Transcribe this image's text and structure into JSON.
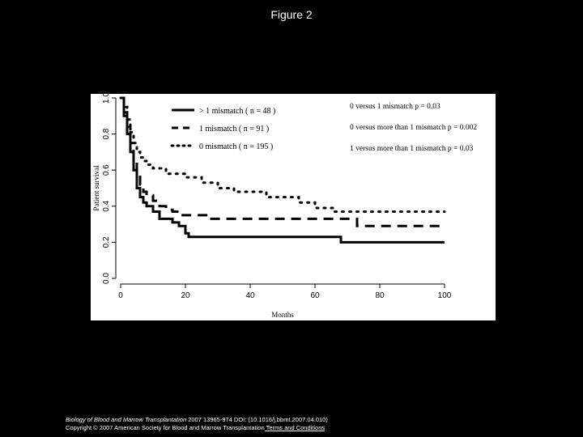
{
  "slide": {
    "title": "Figure 2"
  },
  "caption": {
    "journal": "Biology of Blood and Marrow Transplantation",
    "citation": " 2007 13965-974 DOI: (10.1016/j.bbmt.2007.04.010)",
    "copyright": "Copyright © 2007 American Society for Blood and Marrow Transplantation",
    "terms_link": " Terms and Conditions"
  },
  "chart_data": {
    "type": "line",
    "title": "",
    "xlabel": "Months",
    "ylabel": "Patient survival",
    "xlim": [
      0,
      100
    ],
    "ylim": [
      0,
      1.0
    ],
    "x_ticks": [
      0,
      20,
      40,
      60,
      80,
      100
    ],
    "y_ticks": [
      0.0,
      0.2,
      0.4,
      0.6,
      0.8,
      1.0
    ],
    "legend_position": "top-center",
    "grid": false,
    "series": [
      {
        "name": "> 1 mismatch ( n = 48 )",
        "style": "solid",
        "points": [
          [
            0,
            1.0
          ],
          [
            1,
            0.9
          ],
          [
            2,
            0.8
          ],
          [
            3,
            0.7
          ],
          [
            4,
            0.6
          ],
          [
            5,
            0.5
          ],
          [
            6,
            0.45
          ],
          [
            7,
            0.42
          ],
          [
            8,
            0.4
          ],
          [
            10,
            0.37
          ],
          [
            12,
            0.33
          ],
          [
            14,
            0.33
          ],
          [
            16,
            0.31
          ],
          [
            18,
            0.29
          ],
          [
            20,
            0.25
          ],
          [
            21,
            0.23
          ],
          [
            67,
            0.23
          ],
          [
            68,
            0.2
          ],
          [
            100,
            0.2
          ]
        ]
      },
      {
        "name": "1 mismatch ( n = 91 )",
        "style": "dashed",
        "points": [
          [
            0,
            1.0
          ],
          [
            1,
            0.92
          ],
          [
            2,
            0.84
          ],
          [
            3,
            0.75
          ],
          [
            4,
            0.66
          ],
          [
            5,
            0.58
          ],
          [
            6,
            0.52
          ],
          [
            7,
            0.48
          ],
          [
            8,
            0.46
          ],
          [
            10,
            0.43
          ],
          [
            12,
            0.4
          ],
          [
            14,
            0.38
          ],
          [
            16,
            0.37
          ],
          [
            18,
            0.35
          ],
          [
            20,
            0.35
          ],
          [
            28,
            0.33
          ],
          [
            72,
            0.33
          ],
          [
            73,
            0.29
          ],
          [
            100,
            0.29
          ]
        ]
      },
      {
        "name": "0 mismatch ( n = 195 )",
        "style": "dotted",
        "points": [
          [
            0,
            1.0
          ],
          [
            1,
            0.95
          ],
          [
            2,
            0.88
          ],
          [
            3,
            0.81
          ],
          [
            4,
            0.75
          ],
          [
            5,
            0.7
          ],
          [
            6,
            0.67
          ],
          [
            7,
            0.65
          ],
          [
            8,
            0.63
          ],
          [
            10,
            0.61
          ],
          [
            14,
            0.58
          ],
          [
            20,
            0.56
          ],
          [
            25,
            0.53
          ],
          [
            30,
            0.5
          ],
          [
            35,
            0.48
          ],
          [
            45,
            0.45
          ],
          [
            55,
            0.42
          ],
          [
            60,
            0.39
          ],
          [
            66,
            0.37
          ],
          [
            100,
            0.37
          ]
        ]
      }
    ],
    "annotations": [
      "0 versus 1 mismatch  p = 0.03",
      "0 versus more than 1 mismatch  p = 0.002",
      "1 versus more than 1 mismatch  p = 0.03"
    ]
  }
}
